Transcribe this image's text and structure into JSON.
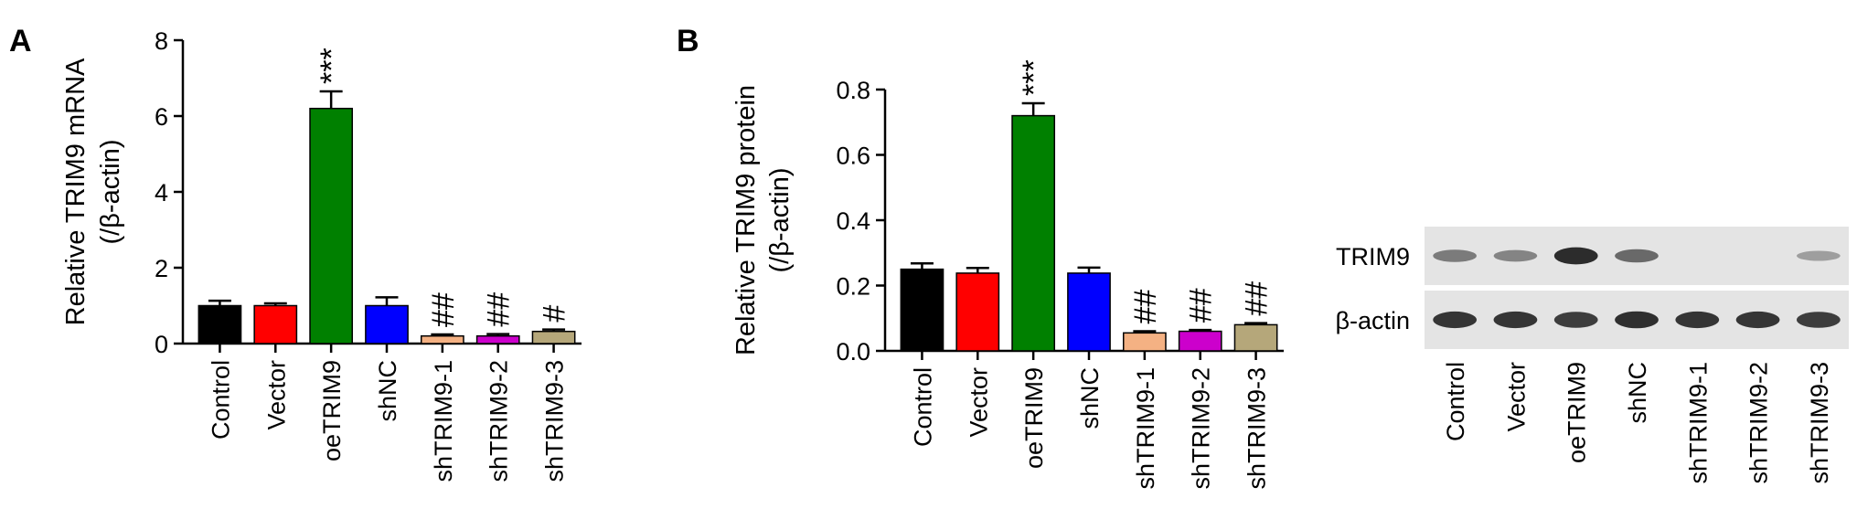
{
  "chart_data": [
    {
      "type": "bar",
      "panel": "A",
      "ylabel": "Relative TRIM9  mRNA",
      "ylabel2": "(/β-actin)",
      "ylim": [
        0,
        8
      ],
      "yticks": [
        "0",
        "2",
        "4",
        "6",
        "8"
      ],
      "categories": [
        "Control",
        "Vector",
        "oeTRIM9",
        "shNC",
        "shTRIM9-1",
        "shTRIM9-2",
        "shTRIM9-3"
      ],
      "values": [
        1.0,
        1.0,
        6.2,
        1.0,
        0.2,
        0.2,
        0.32
      ],
      "errors": [
        0.13,
        0.06,
        0.45,
        0.22,
        0.04,
        0.05,
        0.05
      ],
      "colors": [
        "#000000",
        "#ff0000",
        "#008000",
        "#0000ff",
        "#f4b183",
        "#cc00cc",
        "#b5a77a"
      ],
      "annotations": [
        "",
        "",
        "***",
        "",
        "##",
        "##",
        "#"
      ]
    },
    {
      "type": "bar",
      "panel": "B",
      "ylabel": "Relative TRIM9  protein",
      "ylabel2": "(/β-actin)",
      "ylim": [
        0,
        0.8
      ],
      "yticks": [
        "0.0",
        "0.2",
        "0.4",
        "0.6",
        "0.8"
      ],
      "categories": [
        "Control",
        "Vector",
        "oeTRIM9",
        "shNC",
        "shTRIM9-1",
        "shTRIM9-2",
        "shTRIM9-3"
      ],
      "values": [
        0.25,
        0.238,
        0.72,
        0.238,
        0.055,
        0.06,
        0.08
      ],
      "errors": [
        0.018,
        0.016,
        0.038,
        0.017,
        0.005,
        0.004,
        0.005
      ],
      "colors": [
        "#000000",
        "#ff0000",
        "#008000",
        "#0000ff",
        "#f4b183",
        "#cc00cc",
        "#b5a77a"
      ],
      "annotations": [
        "",
        "",
        "***",
        "",
        "##",
        "##",
        "##"
      ]
    }
  ],
  "blot": {
    "rows": [
      "TRIM9",
      "β-actin"
    ],
    "lanes": [
      "Control",
      "Vector",
      "oeTRIM9",
      "shNC",
      "shTRIM9-1",
      "shTRIM9-2",
      "shTRIM9-3"
    ],
    "trim9_intensity": [
      0.45,
      0.4,
      0.9,
      0.55,
      0.0,
      0.0,
      0.25
    ],
    "actin_intensity": [
      0.85,
      0.85,
      0.8,
      0.88,
      0.85,
      0.85,
      0.8
    ]
  }
}
